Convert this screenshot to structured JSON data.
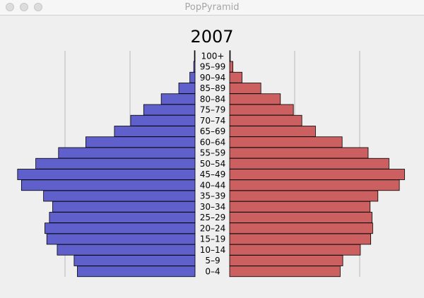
{
  "window": {
    "title": "PopPyramid"
  },
  "chart_data": {
    "type": "bar",
    "title": "2007",
    "categories": [
      "0–4",
      "5–9",
      "10–14",
      "15–19",
      "20–24",
      "25–29",
      "30–34",
      "35–39",
      "40–44",
      "45–49",
      "50–54",
      "55–59",
      "60–64",
      "65–69",
      "70–74",
      "75–79",
      "80–84",
      "85–89",
      "90–94",
      "95–99",
      "100+"
    ],
    "series": [
      {
        "side": "left",
        "color": "#6060cc",
        "values": [
          1.81,
          1.86,
          2.12,
          2.28,
          2.31,
          2.24,
          2.19,
          2.33,
          2.67,
          2.73,
          2.45,
          2.1,
          1.68,
          1.24,
          0.99,
          0.79,
          0.52,
          0.25,
          0.08,
          0.02,
          0.01
        ]
      },
      {
        "side": "right",
        "color": "#cc6060",
        "values": [
          1.7,
          1.74,
          2.01,
          2.17,
          2.2,
          2.19,
          2.16,
          2.28,
          2.61,
          2.69,
          2.45,
          2.13,
          1.73,
          1.32,
          1.11,
          0.98,
          0.78,
          0.48,
          0.19,
          0.05,
          0.01
        ]
      }
    ],
    "xlim": [
      0,
      2.9
    ],
    "gridlines": [
      1,
      2
    ],
    "grid": true
  }
}
